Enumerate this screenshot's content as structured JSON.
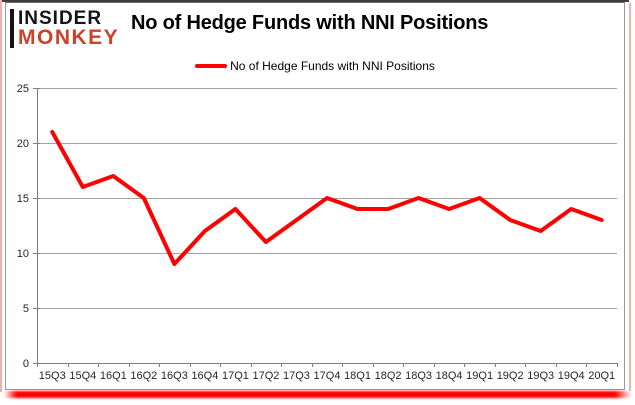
{
  "logo": {
    "line1": "INSIDER",
    "line2": "MONKEY"
  },
  "header": {
    "title": "No of Hedge Funds with NNI Positions"
  },
  "legend": {
    "label": "No of Hedge Funds with NNI Positions"
  },
  "colors": {
    "line_red": "#fe0000",
    "logo_black": "#141414",
    "logo_red": "#c9432b",
    "grid_gray": "#a3a3a3",
    "axis_gray": "#7f7f7f",
    "label_gray": "#262626",
    "frame_pink": "#f0b0ab"
  },
  "chart_data": {
    "type": "line",
    "title": "No of Hedge Funds with NNI Positions",
    "categories": [
      "15Q3",
      "15Q4",
      "16Q1",
      "16Q2",
      "16Q3",
      "16Q4",
      "17Q1",
      "17Q2",
      "17Q3",
      "17Q4",
      "18Q1",
      "18Q2",
      "18Q3",
      "18Q4",
      "19Q1",
      "19Q2",
      "19Q3",
      "19Q4",
      "20Q1"
    ],
    "values": [
      21,
      16,
      17,
      15,
      9,
      12,
      14,
      11,
      13,
      15,
      14,
      14,
      15,
      14,
      15,
      13,
      12,
      14,
      13
    ],
    "series_name": "No of Hedge Funds with NNI Positions",
    "xlabel": "",
    "ylabel": "",
    "ylim": [
      0,
      25
    ],
    "yticks": [
      0,
      5,
      10,
      15,
      20,
      25
    ],
    "grid": true,
    "legend_position": "top-center",
    "line_color": "#fe0000",
    "grid_color": "#a3a3a3",
    "axis_color": "#7f7f7f"
  }
}
